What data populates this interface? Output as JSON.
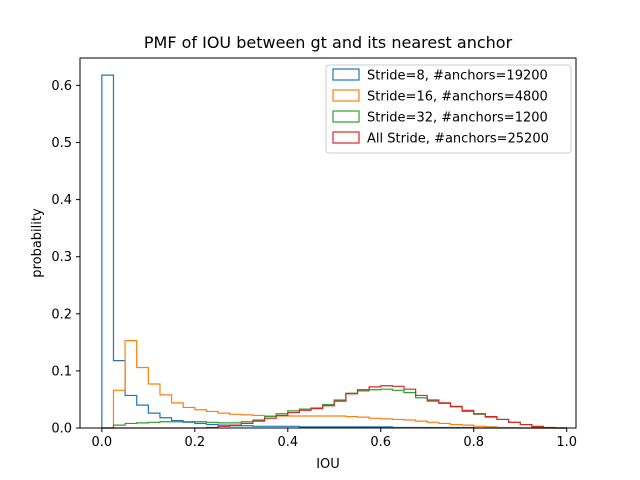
{
  "chart_data": {
    "type": "step-histogram",
    "title": "PMF of IOU between gt and its nearest anchor",
    "xlabel": "IOU",
    "ylabel": "probability",
    "xlim": [
      -0.047,
      1.02
    ],
    "ylim": [
      0,
      0.648
    ],
    "xticks": [
      0.0,
      0.2,
      0.4,
      0.6,
      0.8,
      1.0
    ],
    "xtick_labels": [
      "0.0",
      "0.2",
      "0.4",
      "0.6",
      "0.8",
      "1.0"
    ],
    "yticks": [
      0.0,
      0.1,
      0.2,
      0.3,
      0.4,
      0.5,
      0.6
    ],
    "ytick_labels": [
      "0.0",
      "0.1",
      "0.2",
      "0.3",
      "0.4",
      "0.5",
      "0.6"
    ],
    "legend_position": "top-right",
    "grid": false,
    "bin_edges": [
      0.0,
      0.025,
      0.05,
      0.075,
      0.1,
      0.125,
      0.15,
      0.175,
      0.2,
      0.225,
      0.25,
      0.275,
      0.3,
      0.325,
      0.35,
      0.375,
      0.4,
      0.425,
      0.45,
      0.475,
      0.5,
      0.525,
      0.55,
      0.575,
      0.6,
      0.625,
      0.65,
      0.675,
      0.7,
      0.725,
      0.75,
      0.775,
      0.8,
      0.825,
      0.85,
      0.875,
      0.9,
      0.925,
      0.95,
      0.975,
      1.0
    ],
    "series": [
      {
        "name": "Stride=8, #anchors=19200",
        "color": "#1f77b4",
        "values": [
          0.618,
          0.118,
          0.057,
          0.04,
          0.026,
          0.018,
          0.013,
          0.01,
          0.008,
          0.006,
          0.005,
          0.004,
          0.004,
          0.003,
          0.003,
          0.003,
          0.003,
          0.002,
          0.002,
          0.002,
          0.002,
          0.002,
          0.002,
          0.002,
          0.002,
          0.001,
          0.001,
          0.001,
          0.001,
          0.001,
          0.001,
          0.001,
          0.0,
          0.0,
          0.0,
          0.0,
          0.0,
          0.0,
          0.0,
          0.0
        ]
      },
      {
        "name": "Stride=16, #anchors=4800",
        "color": "#ff7f0e",
        "values": [
          0.0,
          0.066,
          0.153,
          0.106,
          0.077,
          0.058,
          0.044,
          0.036,
          0.032,
          0.029,
          0.026,
          0.024,
          0.023,
          0.022,
          0.021,
          0.021,
          0.021,
          0.021,
          0.021,
          0.021,
          0.021,
          0.02,
          0.019,
          0.017,
          0.016,
          0.015,
          0.014,
          0.012,
          0.01,
          0.008,
          0.006,
          0.005,
          0.003,
          0.002,
          0.001,
          0.001,
          0.0,
          0.0,
          0.0,
          0.0
        ]
      },
      {
        "name": "Stride=32, #anchors=1200",
        "color": "#2ca02c",
        "values": [
          0.0,
          0.005,
          0.008,
          0.009,
          0.01,
          0.011,
          0.011,
          0.011,
          0.011,
          0.01,
          0.009,
          0.009,
          0.011,
          0.014,
          0.02,
          0.025,
          0.03,
          0.033,
          0.035,
          0.041,
          0.049,
          0.061,
          0.065,
          0.067,
          0.068,
          0.066,
          0.062,
          0.053,
          0.047,
          0.043,
          0.037,
          0.029,
          0.024,
          0.019,
          0.015,
          0.01,
          0.006,
          0.002,
          0.0,
          0.0
        ]
      },
      {
        "name": "All Stride, #anchors=25200",
        "color": "#d62728",
        "values": [
          0.0,
          0.0,
          0.0,
          0.0,
          0.0,
          0.0,
          0.0,
          0.0,
          0.0,
          0.001,
          0.003,
          0.005,
          0.008,
          0.012,
          0.017,
          0.022,
          0.027,
          0.031,
          0.034,
          0.039,
          0.047,
          0.06,
          0.067,
          0.072,
          0.074,
          0.073,
          0.068,
          0.057,
          0.049,
          0.044,
          0.038,
          0.031,
          0.025,
          0.02,
          0.015,
          0.01,
          0.006,
          0.003,
          0.001,
          0.0
        ]
      }
    ]
  }
}
